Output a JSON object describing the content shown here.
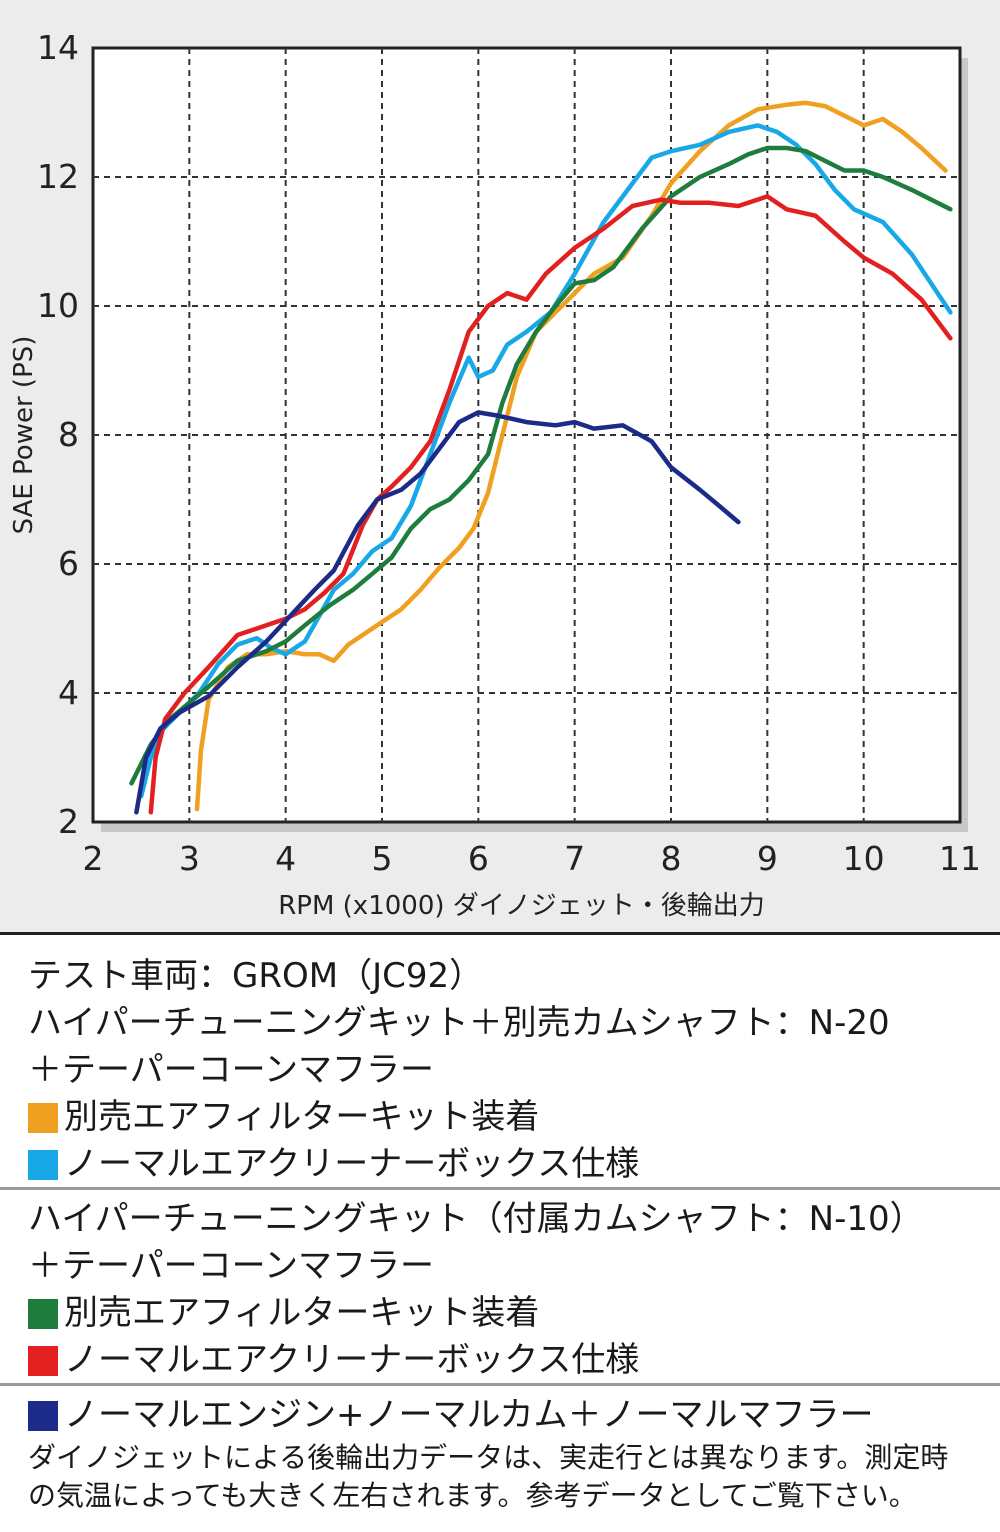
{
  "chart_data": {
    "type": "line",
    "xlabel": "RPM (x1000) ダイノジェット・後輪出力",
    "ylabel": "SAE Power (PS)",
    "xlim": [
      2,
      11
    ],
    "ylim": [
      2,
      14
    ],
    "xticks": [
      2,
      3,
      4,
      5,
      6,
      7,
      8,
      9,
      10,
      11
    ],
    "yticks": [
      2,
      4,
      6,
      8,
      10,
      12,
      14
    ],
    "grid": true,
    "legend_position": "below",
    "series": [
      {
        "id": "orange",
        "color": "#f0a020",
        "x": [
          3.08,
          3.12,
          3.2,
          3.4,
          3.6,
          3.8,
          4.0,
          4.2,
          4.35,
          4.5,
          4.65,
          4.8,
          5.0,
          5.2,
          5.4,
          5.6,
          5.8,
          5.95,
          6.1,
          6.25,
          6.4,
          6.6,
          6.8,
          7.0,
          7.2,
          7.5,
          7.8,
          8.0,
          8.3,
          8.6,
          8.9,
          9.2,
          9.4,
          9.6,
          9.8,
          10.0,
          10.2,
          10.4,
          10.6,
          10.85
        ],
        "y": [
          2.2,
          3.1,
          3.9,
          4.4,
          4.6,
          4.6,
          4.65,
          4.6,
          4.6,
          4.5,
          4.75,
          4.9,
          5.1,
          5.3,
          5.6,
          5.95,
          6.25,
          6.55,
          7.1,
          8.0,
          8.9,
          9.6,
          9.9,
          10.2,
          10.5,
          10.75,
          11.4,
          11.9,
          12.4,
          12.8,
          13.05,
          13.12,
          13.15,
          13.1,
          12.95,
          12.8,
          12.9,
          12.7,
          12.45,
          12.1
        ]
      },
      {
        "id": "light-blue",
        "color": "#18a8e8",
        "x": [
          2.5,
          2.6,
          2.7,
          2.9,
          3.1,
          3.3,
          3.5,
          3.7,
          3.85,
          4.0,
          4.2,
          4.35,
          4.5,
          4.7,
          4.9,
          5.1,
          5.3,
          5.5,
          5.7,
          5.9,
          6.0,
          6.15,
          6.3,
          6.5,
          6.75,
          7.0,
          7.3,
          7.6,
          7.8,
          8.0,
          8.3,
          8.6,
          8.9,
          9.1,
          9.3,
          9.5,
          9.7,
          9.9,
          10.2,
          10.5,
          10.9
        ],
        "y": [
          2.4,
          3.0,
          3.4,
          3.7,
          4.0,
          4.45,
          4.75,
          4.85,
          4.7,
          4.6,
          4.8,
          5.2,
          5.6,
          5.85,
          6.2,
          6.4,
          6.9,
          7.7,
          8.5,
          9.2,
          8.9,
          9.0,
          9.4,
          9.6,
          9.9,
          10.5,
          11.3,
          11.9,
          12.3,
          12.4,
          12.5,
          12.7,
          12.8,
          12.7,
          12.5,
          12.2,
          11.8,
          11.5,
          11.3,
          10.8,
          9.9
        ]
      },
      {
        "id": "green",
        "color": "#1e7c3c",
        "x": [
          2.4,
          2.6,
          2.8,
          3.0,
          3.2,
          3.5,
          3.8,
          4.0,
          4.2,
          4.45,
          4.7,
          4.9,
          5.1,
          5.3,
          5.5,
          5.7,
          5.9,
          6.1,
          6.25,
          6.4,
          6.6,
          6.8,
          7.0,
          7.2,
          7.4,
          7.7,
          8.0,
          8.3,
          8.6,
          8.8,
          9.0,
          9.2,
          9.4,
          9.6,
          9.8,
          10.0,
          10.2,
          10.5,
          10.9
        ],
        "y": [
          2.6,
          3.2,
          3.6,
          3.85,
          4.1,
          4.5,
          4.65,
          4.8,
          5.05,
          5.35,
          5.6,
          5.85,
          6.1,
          6.55,
          6.85,
          7.0,
          7.3,
          7.7,
          8.5,
          9.1,
          9.6,
          10.0,
          10.35,
          10.4,
          10.6,
          11.2,
          11.7,
          12.0,
          12.2,
          12.35,
          12.45,
          12.45,
          12.4,
          12.25,
          12.1,
          12.1,
          12.0,
          11.8,
          11.5
        ]
      },
      {
        "id": "red",
        "color": "#e32020",
        "x": [
          2.6,
          2.65,
          2.75,
          2.95,
          3.2,
          3.5,
          3.8,
          4.0,
          4.2,
          4.4,
          4.6,
          4.8,
          4.95,
          5.1,
          5.3,
          5.5,
          5.7,
          5.9,
          6.1,
          6.3,
          6.5,
          6.7,
          7.0,
          7.3,
          7.6,
          7.9,
          8.1,
          8.4,
          8.7,
          9.0,
          9.2,
          9.5,
          9.8,
          10.0,
          10.3,
          10.6,
          10.9
        ],
        "y": [
          2.15,
          3.0,
          3.6,
          4.0,
          4.4,
          4.9,
          5.05,
          5.15,
          5.3,
          5.55,
          5.85,
          6.6,
          7.0,
          7.2,
          7.5,
          7.9,
          8.7,
          9.6,
          10.0,
          10.2,
          10.1,
          10.5,
          10.9,
          11.2,
          11.55,
          11.65,
          11.6,
          11.6,
          11.55,
          11.7,
          11.5,
          11.4,
          11.0,
          10.75,
          10.5,
          10.1,
          9.5
        ]
      },
      {
        "id": "navy",
        "color": "#1c2a8a",
        "x": [
          2.45,
          2.55,
          2.7,
          2.9,
          3.2,
          3.5,
          3.8,
          4.05,
          4.3,
          4.5,
          4.75,
          4.95,
          5.2,
          5.4,
          5.6,
          5.8,
          6.0,
          6.2,
          6.5,
          6.8,
          7.0,
          7.2,
          7.5,
          7.8,
          8.0,
          8.3,
          8.5,
          8.7
        ],
        "y": [
          2.15,
          3.0,
          3.45,
          3.7,
          3.95,
          4.4,
          4.8,
          5.2,
          5.6,
          5.9,
          6.6,
          7.0,
          7.15,
          7.4,
          7.8,
          8.2,
          8.35,
          8.3,
          8.2,
          8.15,
          8.2,
          8.1,
          8.15,
          7.9,
          7.5,
          7.15,
          6.9,
          6.65
        ]
      }
    ]
  },
  "legend": {
    "group1": {
      "line1": "テスト車両：GROM（JC92）",
      "line2": "ハイパーチューニングキット＋別売カムシャフト：N-20",
      "line3": "＋テーパーコーンマフラー",
      "entries": [
        {
          "color": "#f0a020",
          "label": "別売エアフィルターキット装着"
        },
        {
          "color": "#18a8e8",
          "label": "ノーマルエアクリーナーボックス仕様"
        }
      ]
    },
    "group2": {
      "line1": "ハイパーチューニングキット（付属カムシャフト：N-10）",
      "line2": "＋テーパーコーンマフラー",
      "entries": [
        {
          "color": "#1e7c3c",
          "label": "別売エアフィルターキット装着"
        },
        {
          "color": "#e32020",
          "label": "ノーマルエアクリーナーボックス仕様"
        }
      ]
    },
    "group3": {
      "entries": [
        {
          "color": "#1c2a8a",
          "label": "ノーマルエンジン+ノーマルカム＋ノーマルマフラー"
        }
      ],
      "note1": "ダイノジェットによる後輪出力データは、実走行とは異なります。測定時",
      "note2": "の気温によっても大きく左右されます。参考データとしてご覧下さい。"
    }
  }
}
